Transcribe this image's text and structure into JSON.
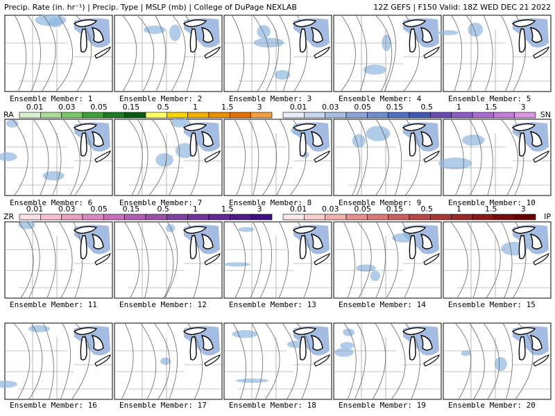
{
  "header": {
    "left": "Precip. Rate (in. hr⁻¹) | Precip. Type | MSLP (mb) | College of DuPage NEXLAB",
    "right": "12Z GEFS | F150 Valid: 18Z WED DEC 21 2022"
  },
  "legends": [
    {
      "label": "RA",
      "ticks": [
        "0.01",
        "0.03",
        "0.05",
        "0.15",
        "0.5",
        "1",
        "1.5",
        "3"
      ]
    },
    {
      "label": "SN",
      "ticks": [
        "0.01",
        "0.03",
        "0.05",
        "0.15",
        "0.5",
        "1",
        "1.5",
        "3"
      ]
    },
    {
      "label": "ZR",
      "ticks": [
        "0.01",
        "0.03",
        "0.05",
        "0.15",
        "0.5",
        "1",
        "1.5",
        "3"
      ]
    },
    {
      "label": "IP",
      "ticks": [
        "0.01",
        "0.03",
        "0.05",
        "0.15",
        "0.5",
        "1",
        "1.5",
        "3"
      ]
    }
  ],
  "panels": [
    {
      "label": "Ensemble Member: 1"
    },
    {
      "label": "Ensemble Member: 2"
    },
    {
      "label": "Ensemble Member: 3"
    },
    {
      "label": "Ensemble Member: 4"
    },
    {
      "label": "Ensemble Member: 5"
    },
    {
      "label": "Ensemble Member: 6"
    },
    {
      "label": "Ensemble Member: 7"
    },
    {
      "label": "Ensemble Member: 8"
    },
    {
      "label": "Ensemble Member: 9"
    },
    {
      "label": "Ensemble Member: 10"
    },
    {
      "label": "Ensemble Member: 11"
    },
    {
      "label": "Ensemble Member: 12"
    },
    {
      "label": "Ensemble Member: 13"
    },
    {
      "label": "Ensemble Member: 14"
    },
    {
      "label": "Ensemble Member: 15"
    },
    {
      "label": "Ensemble Member: 16"
    },
    {
      "label": "Ensemble Member: 17"
    },
    {
      "label": "Ensemble Member: 18"
    },
    {
      "label": "Ensemble Member: 19"
    },
    {
      "label": "Ensemble Member: 20"
    }
  ]
}
